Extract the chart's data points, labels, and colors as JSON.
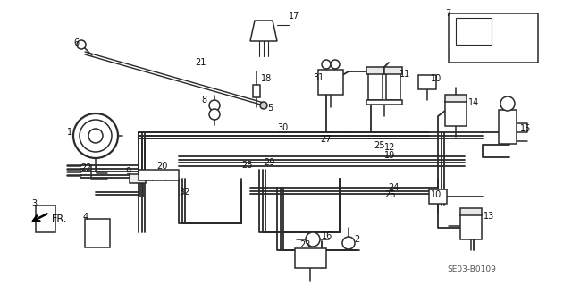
{
  "background_color": "#ffffff",
  "diagram_code": "SE03-B0109",
  "line_color": "#2a2a2a",
  "label_fontsize": 7.0,
  "tube_lw": 1.3,
  "component_lw": 1.1
}
